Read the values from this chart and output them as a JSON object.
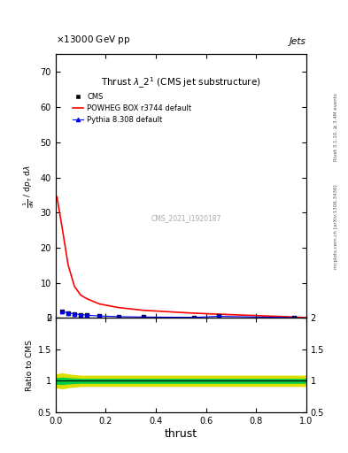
{
  "title_top": "13000 GeV pp",
  "title_top_right": "Jets",
  "plot_title": "Thrust $\\lambda\\_2^1$ (CMS jet substructure)",
  "watermark": "CMS_2021_I1920187",
  "xlabel": "thrust",
  "ylabel_main_parts": [
    "mathrm d$^2$N",
    "mathrm d p_T mathrm d lambda"
  ],
  "ylabel_ratio": "Ratio to CMS",
  "right_label_top": "Rivet 3.1.10, ≥ 3.4M events",
  "right_label_bot": "mcplots.cern.ch [arXiv:1306.3436]",
  "xlim": [
    0,
    1
  ],
  "ylim_main": [
    0,
    75
  ],
  "ylim_ratio": [
    0.5,
    2.0
  ],
  "yticks_main": [
    0,
    10,
    20,
    30,
    40,
    50,
    60,
    70
  ],
  "yticks_ratio": [
    0.5,
    1.0,
    1.5,
    2.0
  ],
  "cms_x": [
    0.025,
    0.05,
    0.075,
    0.1,
    0.125,
    0.175,
    0.25,
    0.35,
    0.55,
    0.65,
    0.95
  ],
  "cms_y": [
    1.8,
    1.5,
    1.2,
    1.0,
    0.8,
    0.6,
    0.4,
    0.3,
    0.2,
    0.5,
    0.1
  ],
  "powheg_x": [
    0.005,
    0.025,
    0.05,
    0.075,
    0.1,
    0.125,
    0.175,
    0.25,
    0.35,
    0.55,
    0.65,
    0.95,
    1.0
  ],
  "powheg_y": [
    34.5,
    26.0,
    15.0,
    9.0,
    6.5,
    5.5,
    4.0,
    3.0,
    2.2,
    1.4,
    1.1,
    0.3,
    0.1
  ],
  "pythia_x": [
    0.025,
    0.05,
    0.075,
    0.1,
    0.125,
    0.175,
    0.25,
    0.35,
    0.55,
    0.65,
    0.95
  ],
  "pythia_y": [
    1.8,
    1.5,
    1.2,
    1.0,
    0.8,
    0.6,
    0.4,
    0.3,
    0.2,
    0.5,
    0.1
  ],
  "ratio_x": [
    0.0,
    0.025,
    0.05,
    0.1,
    0.15,
    0.2,
    0.3,
    0.5,
    0.7,
    0.9,
    1.0
  ],
  "ratio_green_upper": [
    1.04,
    1.05,
    1.04,
    1.03,
    1.03,
    1.03,
    1.03,
    1.03,
    1.03,
    1.03,
    1.03
  ],
  "ratio_green_lower": [
    0.96,
    0.95,
    0.96,
    0.97,
    0.97,
    0.97,
    0.97,
    0.97,
    0.97,
    0.97,
    0.97
  ],
  "ratio_yellow_upper": [
    1.1,
    1.12,
    1.1,
    1.08,
    1.08,
    1.08,
    1.08,
    1.08,
    1.08,
    1.08,
    1.08
  ],
  "ratio_yellow_lower": [
    0.9,
    0.88,
    0.9,
    0.92,
    0.92,
    0.92,
    0.92,
    0.92,
    0.92,
    0.92,
    0.92
  ],
  "cms_color": "#000000",
  "powheg_color": "#ff0000",
  "pythia_color": "#0000ff",
  "green_band_color": "#00cc44",
  "yellow_band_color": "#dddd00",
  "bg_color": "#ffffff",
  "legend_cms": "CMS",
  "legend_powheg": "POWHEG BOX r3744 default",
  "legend_pythia": "Pythia 8.308 default"
}
